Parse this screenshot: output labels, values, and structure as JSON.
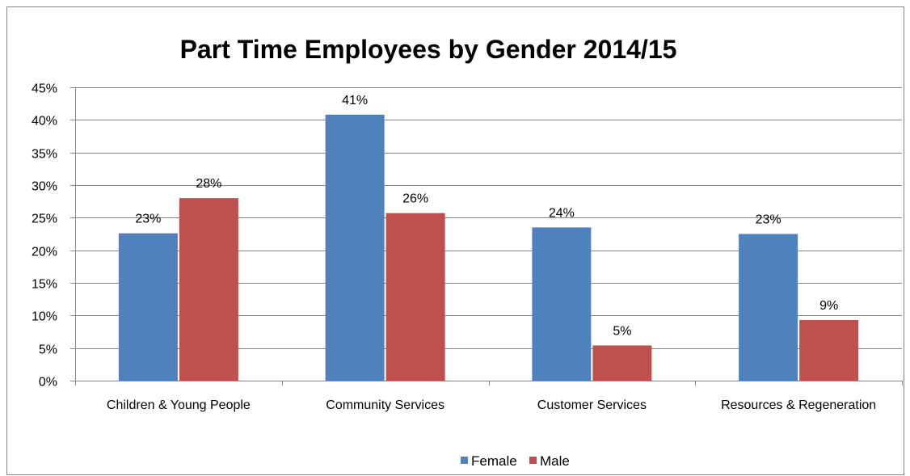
{
  "chart_data": {
    "type": "bar",
    "title": "Part Time Employees by Gender 2014/15",
    "categories": [
      "Children & Young People",
      "Community Services",
      "Customer Services",
      "Resources & Regeneration"
    ],
    "series": [
      {
        "name": "Female",
        "color": "#4F81BD",
        "values": [
          22.6,
          40.8,
          23.5,
          22.5
        ],
        "labels": [
          "23%",
          "41%",
          "24%",
          "23%"
        ]
      },
      {
        "name": "Male",
        "color": "#C0504D",
        "values": [
          28.0,
          25.7,
          5.4,
          9.3
        ],
        "labels": [
          "28%",
          "26%",
          "5%",
          "9%"
        ]
      }
    ],
    "ylim": [
      0,
      45
    ],
    "y_ticks": [
      "0%",
      "5%",
      "10%",
      "15%",
      "20%",
      "25%",
      "30%",
      "35%",
      "40%",
      "45%"
    ],
    "grid": true,
    "legend_position": "bottom",
    "xlabel": "",
    "ylabel": ""
  }
}
